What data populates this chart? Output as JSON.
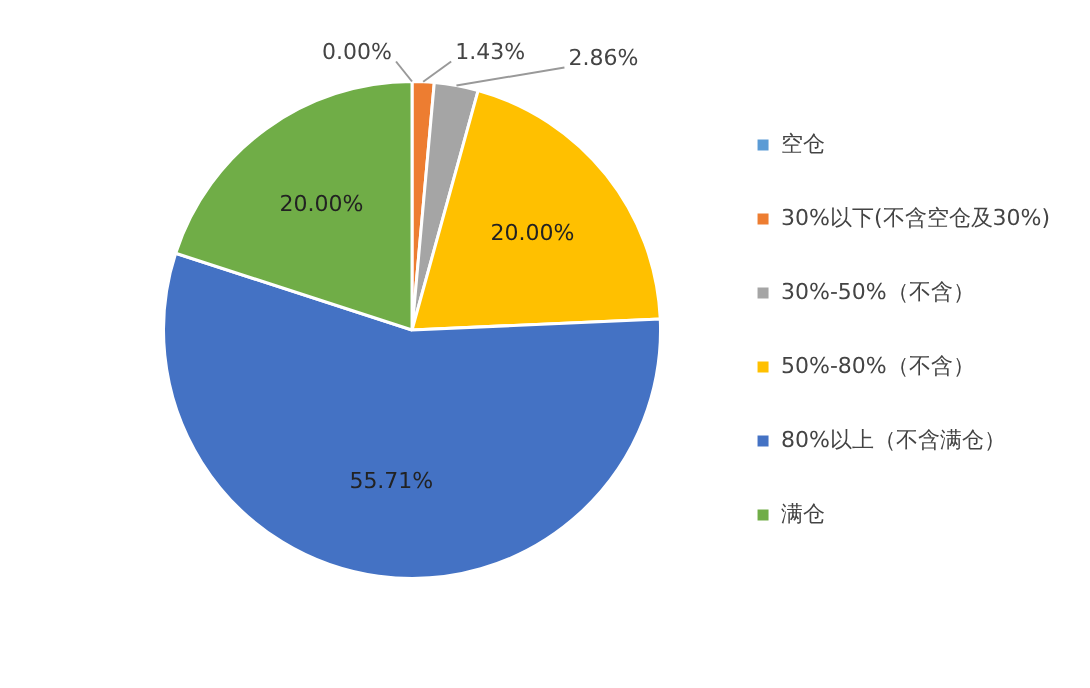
{
  "chart_data": {
    "type": "pie",
    "categories": [
      "空仓",
      "30%以下(不含空仓及30%)",
      "30%-50%（不含）",
      "50%-80%（不含）",
      "80%以上（不含满仓）",
      "满仓"
    ],
    "values": [
      0.0,
      1.43,
      2.86,
      20.0,
      55.71,
      20.0
    ],
    "colors": [
      "#5b9bd5",
      "#ed7d31",
      "#a5a5a5",
      "#ffc000",
      "#4472c4",
      "#70ad47"
    ],
    "value_labels": [
      "0.00%",
      "1.43%",
      "2.86%",
      "20.00%",
      "55.71%",
      "20.00%"
    ],
    "legend": "right"
  }
}
